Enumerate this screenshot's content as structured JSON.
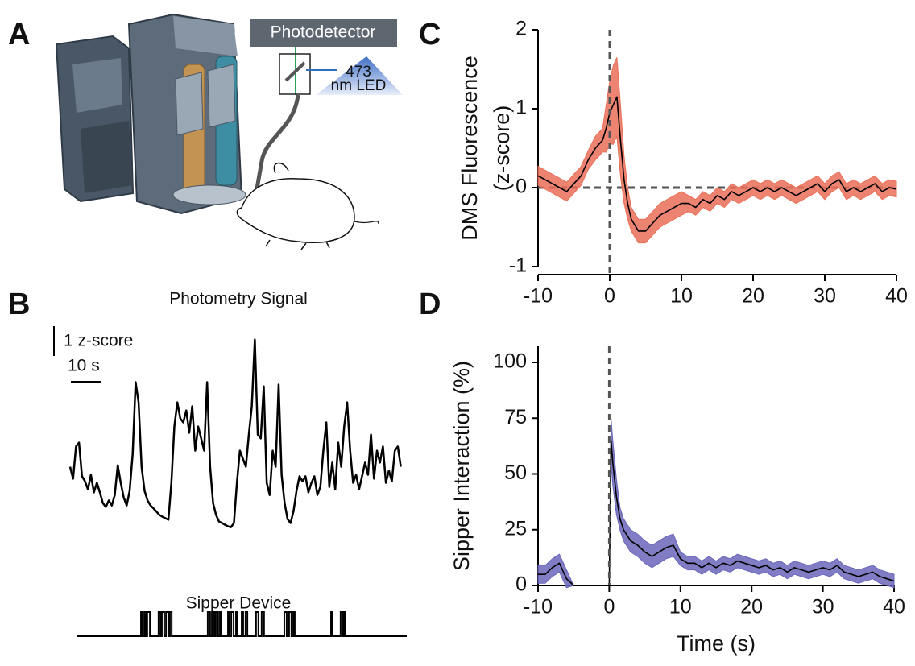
{
  "panel_labels": [
    "A",
    "B",
    "C",
    "D"
  ],
  "illustration": {
    "photodetector": "Photodetector",
    "led": [
      "473",
      "nm LED"
    ]
  },
  "chart_data": [
    {
      "type": "line",
      "title": "Photometry Signal",
      "x": [
        0,
        1,
        2,
        3,
        4,
        5,
        6,
        7,
        8,
        9,
        10,
        11,
        12,
        13,
        14,
        15,
        16,
        17,
        18,
        19,
        20,
        21,
        22,
        23,
        24,
        25,
        26,
        27,
        28,
        29,
        30,
        31,
        32,
        33,
        34,
        35,
        36,
        37,
        38,
        39,
        40,
        41,
        42,
        43,
        44,
        45,
        46,
        47,
        48,
        49,
        50,
        51,
        52,
        53,
        54,
        55,
        56,
        57,
        58,
        59,
        60,
        61,
        62,
        63,
        64,
        65,
        66,
        67,
        68,
        69,
        70,
        71,
        72,
        73,
        74,
        75,
        76,
        77,
        78,
        79,
        80,
        81,
        82,
        83,
        84,
        85,
        86,
        87,
        88,
        89,
        90,
        91,
        92,
        93,
        94,
        95,
        96,
        97,
        98,
        99,
        100,
        101,
        102,
        103,
        104,
        105,
        106,
        107,
        108,
        109,
        110,
        111
      ],
      "series": [
        {
          "color": "#000000",
          "values": [
            0.54,
            0.14,
            1.22,
            1.35,
            0.22,
            0.05,
            -0.22,
            0.27,
            -0.32,
            0,
            -0.32,
            -0.68,
            -0.81,
            -0.59,
            -0.76,
            -0.41,
            0.59,
            0,
            -0.49,
            -0.76,
            -0.27,
            0.95,
            3.38,
            2.7,
            0.54,
            -0.27,
            -0.59,
            -0.76,
            -0.86,
            -0.97,
            -1.08,
            -1.14,
            -1.19,
            -1.24,
            0,
            1.89,
            2.7,
            2.16,
            2.03,
            2.43,
            1.68,
            2.57,
            1.08,
            1.89,
            1.49,
            1.08,
            3.38,
            0.54,
            -0.68,
            -1.08,
            -1.3,
            -1.35,
            -1.41,
            -1.46,
            -1.49,
            -1.35,
            0,
            1.08,
            0.81,
            0.54,
            1.62,
            2.57,
            4.81,
            1.62,
            1.49,
            3.24,
            0,
            -0.41,
            1.08,
            0.54,
            3.3,
            0.27,
            -0.68,
            -1.22,
            -1.35,
            -0.95,
            -0.27,
            0.22,
            0.05,
            0.22,
            -0.32,
            0,
            0.22,
            -0.41,
            -0.14,
            1.08,
            2.03,
            -0.14,
            0.68,
            -0.22,
            1.35,
            0.54,
            1.89,
            2.7,
            1.08,
            0,
            0.27,
            -0.22,
            0.22,
            0.68,
            0.27,
            1.62,
            0.14,
            1.08,
            0.68,
            1.22,
            0,
            0.41,
            0.05,
            1.08,
            1.22,
            0.54
          ]
        }
      ],
      "xlim": [
        0,
        113
      ],
      "ylim": [
        -1.5,
        4.8
      ],
      "scale_bars": [
        {
          "axis": "y",
          "value": 1,
          "label": "1 z-score"
        },
        {
          "axis": "x",
          "value": 10,
          "label": "10 s"
        }
      ]
    },
    {
      "type": "step",
      "title": "Sipper Device",
      "x": [
        2.2,
        23.8,
        24.3,
        24.9,
        25.4,
        25.9,
        26.8,
        29.7,
        30.3,
        30.8,
        31.6,
        32.2,
        33.0,
        33.5,
        34.1,
        46.2,
        47.0,
        47.6,
        48.4,
        48.9,
        49.7,
        50.3,
        50.8,
        53.0,
        53.5,
        54.1,
        54.9,
        55.7,
        56.2,
        57.6,
        58.1,
        58.9,
        59.5,
        62.4,
        63.2,
        64.3,
        65.1,
        71.9,
        72.7,
        73.5,
        74.3,
        74.9,
        75.4,
        87.6,
        88.1,
        90.8,
        91.4,
        91.9,
        92.2,
        113.0
      ],
      "series": [
        {
          "color": "#000000",
          "values": [
            0,
            1,
            0,
            1,
            0,
            1,
            0,
            1,
            0,
            1,
            0,
            1,
            0,
            1,
            0,
            1,
            0,
            1,
            0,
            1,
            0,
            1,
            0,
            1,
            0,
            1,
            0,
            1,
            0,
            1,
            0,
            1,
            0,
            1,
            0,
            1,
            0,
            1,
            0,
            1,
            0,
            1,
            0,
            1,
            0,
            1,
            0,
            1,
            0,
            0
          ]
        }
      ],
      "xlim": [
        0,
        113
      ],
      "ylim": [
        0,
        1
      ]
    },
    {
      "type": "line",
      "ylabel": [
        "DMS Fluorescence",
        "(z-score)"
      ],
      "x": [
        -10,
        -9,
        -8,
        -7,
        -6,
        -5,
        -4,
        -3,
        -2,
        -1,
        -0.5,
        0,
        0.5,
        1,
        1.5,
        2,
        2.5,
        3,
        4,
        5,
        6,
        7,
        8,
        9,
        10,
        11,
        12,
        13,
        14,
        15,
        16,
        17,
        18,
        19,
        20,
        21,
        22,
        23,
        24,
        25,
        26,
        27,
        28,
        29,
        30,
        31,
        32,
        33,
        34,
        35,
        36,
        37,
        38,
        39,
        40
      ],
      "series": [
        {
          "color": "#000000",
          "band_color": "#ea6f58",
          "values": [
            0.15,
            0.1,
            0.05,
            0,
            -0.05,
            0.05,
            0.15,
            0.35,
            0.5,
            0.6,
            0.75,
            0.95,
            1.05,
            1.15,
            0.6,
            0.1,
            -0.2,
            -0.4,
            -0.55,
            -0.55,
            -0.45,
            -0.35,
            -0.3,
            -0.25,
            -0.2,
            -0.2,
            -0.25,
            -0.15,
            -0.2,
            -0.1,
            -0.15,
            -0.05,
            -0.1,
            -0.05,
            0,
            -0.05,
            0,
            -0.05,
            0,
            -0.05,
            -0.1,
            -0.05,
            0,
            0.05,
            -0.05,
            0.05,
            0.1,
            -0.05,
            0,
            -0.05,
            0,
            0.05,
            -0.05,
            0,
            -0.02
          ],
          "error": [
            0.12,
            0.12,
            0.12,
            0.12,
            0.12,
            0.12,
            0.12,
            0.12,
            0.15,
            0.15,
            0.3,
            0.4,
            0.5,
            0.5,
            0.45,
            0.3,
            0.2,
            0.15,
            0.15,
            0.15,
            0.15,
            0.15,
            0.15,
            0.15,
            0.15,
            0.1,
            0.1,
            0.1,
            0.1,
            0.1,
            0.1,
            0.1,
            0.1,
            0.1,
            0.1,
            0.1,
            0.1,
            0.1,
            0.1,
            0.1,
            0.1,
            0.1,
            0.1,
            0.1,
            0.1,
            0.1,
            0.1,
            0.1,
            0.1,
            0.1,
            0.1,
            0.1,
            0.1,
            0.1,
            0.1
          ]
        }
      ],
      "xlim": [
        -10,
        40
      ],
      "ylim": [
        -1,
        2
      ],
      "xticks": [
        -10,
        0,
        10,
        20,
        30,
        40
      ],
      "yticks": [
        -1,
        0,
        1,
        2
      ],
      "vlines": [
        0
      ],
      "hlines": [
        0
      ]
    },
    {
      "type": "line",
      "xlabel": "Time (s)",
      "ylabel": [
        "Sipper Interaction (%)"
      ],
      "x": [
        -10,
        -9,
        -8,
        -7,
        -6,
        -5,
        -4,
        -3,
        -2,
        -1,
        0,
        0.25,
        0.5,
        1,
        1.5,
        2,
        3,
        4,
        5,
        6,
        7,
        8,
        9,
        10,
        11,
        12,
        13,
        14,
        15,
        16,
        17,
        18,
        19,
        20,
        21,
        22,
        23,
        24,
        25,
        26,
        27,
        28,
        29,
        30,
        31,
        32,
        33,
        34,
        35,
        36,
        37,
        38,
        39,
        40
      ],
      "series": [
        {
          "color": "#000000",
          "band_color": "#6a66bb",
          "values": [
            5,
            5,
            8,
            10,
            3,
            0,
            0,
            0,
            0,
            0,
            0,
            65,
            55,
            40,
            30,
            25,
            20,
            18,
            15,
            13,
            15,
            17,
            18,
            12,
            10,
            10,
            8,
            10,
            8,
            10,
            9,
            11,
            10,
            9,
            8,
            9,
            7,
            8,
            6,
            8,
            7,
            6,
            7,
            8,
            7,
            9,
            6,
            5,
            4,
            5,
            6,
            4,
            3,
            2
          ],
          "error": [
            4,
            4,
            4,
            4,
            4,
            0,
            0,
            0,
            0,
            0,
            0,
            10,
            10,
            8,
            5,
            5,
            5,
            5,
            5,
            5,
            5,
            5,
            5,
            3,
            3,
            3,
            3,
            3,
            3,
            3,
            3,
            3,
            3,
            3,
            3,
            3,
            3,
            3,
            3,
            3,
            3,
            3,
            3,
            3,
            3,
            3,
            3,
            3,
            3,
            3,
            3,
            3,
            3,
            3
          ]
        }
      ],
      "xlim": [
        -10,
        40
      ],
      "ylim": [
        0,
        100
      ],
      "xticks": [
        -10,
        0,
        10,
        20,
        30,
        40
      ],
      "yticks": [
        0,
        25,
        50,
        75,
        100
      ],
      "vlines": [
        0
      ]
    }
  ]
}
